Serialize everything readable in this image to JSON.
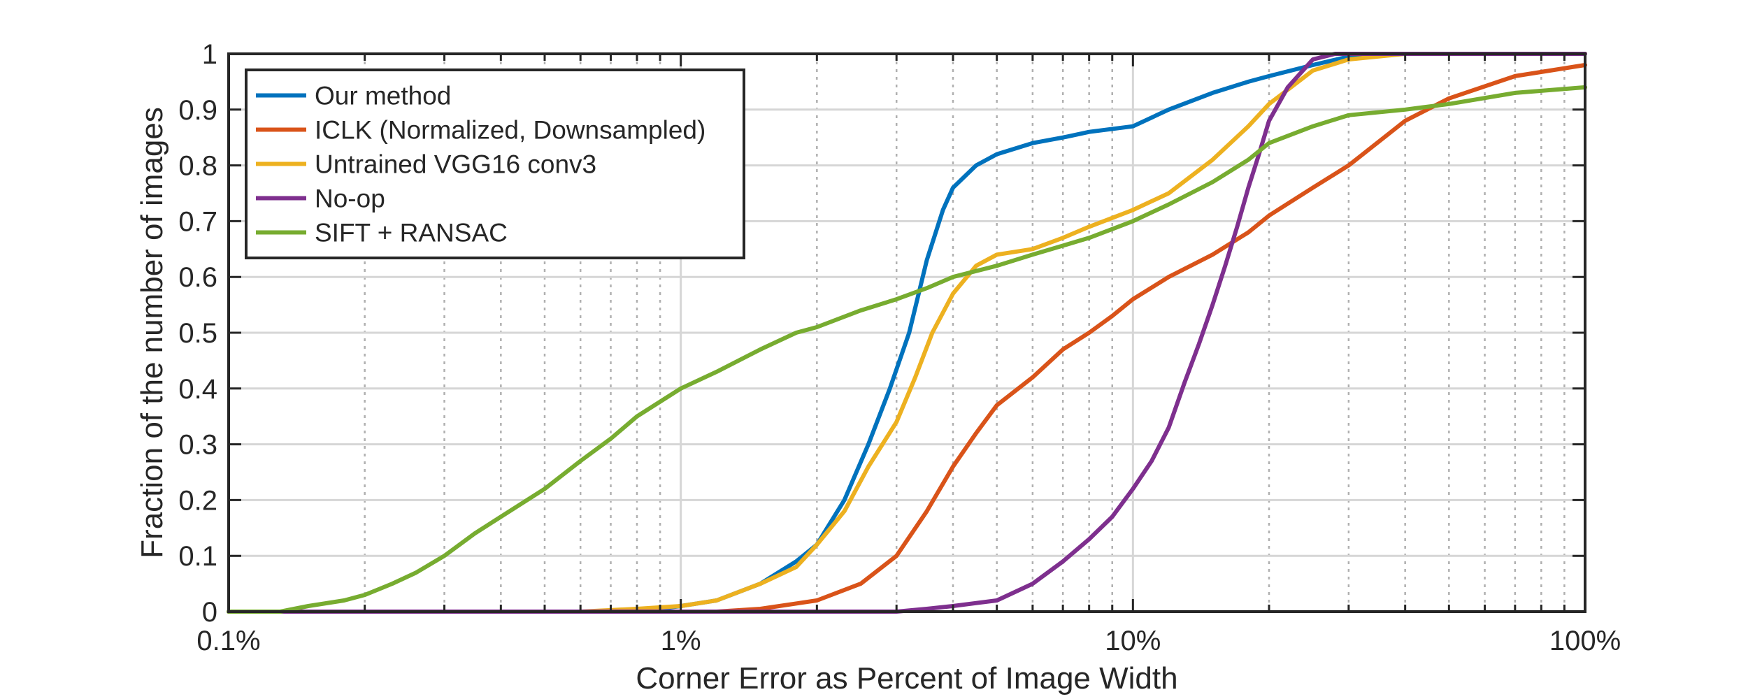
{
  "chart_data": {
    "type": "line",
    "xlabel": "Corner Error as Percent of Image Width",
    "ylabel": "Fraction of the number of images",
    "x_scale": "log",
    "xlim": [
      0.1,
      100
    ],
    "ylim": [
      0,
      1
    ],
    "x_ticks": [
      0.1,
      1,
      10,
      100
    ],
    "x_tick_labels": [
      "0.1%",
      "1%",
      "10%",
      "100%"
    ],
    "y_ticks": [
      0,
      0.1,
      0.2,
      0.3,
      0.4,
      0.5,
      0.6,
      0.7,
      0.8,
      0.9,
      1
    ],
    "y_tick_labels": [
      "0",
      "0.1",
      "0.2",
      "0.3",
      "0.4",
      "0.5",
      "0.6",
      "0.7",
      "0.8",
      "0.9",
      "1"
    ],
    "grid": true,
    "legend_position": "top-left",
    "series": [
      {
        "name": "Our method",
        "color": "#0072BD",
        "points": [
          [
            0.1,
            0
          ],
          [
            0.8,
            0
          ],
          [
            1,
            0.01
          ],
          [
            1.2,
            0.02
          ],
          [
            1.5,
            0.05
          ],
          [
            1.8,
            0.09
          ],
          [
            2,
            0.12
          ],
          [
            2.3,
            0.2
          ],
          [
            2.6,
            0.3
          ],
          [
            2.9,
            0.4
          ],
          [
            3.2,
            0.5
          ],
          [
            3.5,
            0.63
          ],
          [
            3.8,
            0.72
          ],
          [
            4,
            0.76
          ],
          [
            4.5,
            0.8
          ],
          [
            5,
            0.82
          ],
          [
            6,
            0.84
          ],
          [
            7,
            0.85
          ],
          [
            8,
            0.86
          ],
          [
            10,
            0.87
          ],
          [
            12,
            0.9
          ],
          [
            15,
            0.93
          ],
          [
            18,
            0.95
          ],
          [
            20,
            0.96
          ],
          [
            25,
            0.98
          ],
          [
            30,
            0.995
          ],
          [
            40,
            1
          ],
          [
            100,
            1
          ]
        ]
      },
      {
        "name": "ICLK (Normalized, Downsampled)",
        "color": "#D95319",
        "points": [
          [
            0.1,
            0
          ],
          [
            1.2,
            0
          ],
          [
            1.5,
            0.005
          ],
          [
            2,
            0.02
          ],
          [
            2.5,
            0.05
          ],
          [
            3,
            0.1
          ],
          [
            3.5,
            0.18
          ],
          [
            4,
            0.26
          ],
          [
            4.5,
            0.32
          ],
          [
            5,
            0.37
          ],
          [
            6,
            0.42
          ],
          [
            7,
            0.47
          ],
          [
            8,
            0.5
          ],
          [
            9,
            0.53
          ],
          [
            10,
            0.56
          ],
          [
            12,
            0.6
          ],
          [
            15,
            0.64
          ],
          [
            18,
            0.68
          ],
          [
            20,
            0.71
          ],
          [
            25,
            0.76
          ],
          [
            30,
            0.8
          ],
          [
            40,
            0.88
          ],
          [
            50,
            0.92
          ],
          [
            70,
            0.96
          ],
          [
            100,
            0.98
          ]
        ]
      },
      {
        "name": "Untrained VGG16 conv3",
        "color": "#EDB120",
        "points": [
          [
            0.1,
            0
          ],
          [
            0.6,
            0
          ],
          [
            0.8,
            0.005
          ],
          [
            1,
            0.01
          ],
          [
            1.2,
            0.02
          ],
          [
            1.5,
            0.05
          ],
          [
            1.8,
            0.08
          ],
          [
            2,
            0.12
          ],
          [
            2.3,
            0.18
          ],
          [
            2.6,
            0.26
          ],
          [
            3,
            0.34
          ],
          [
            3.3,
            0.42
          ],
          [
            3.6,
            0.5
          ],
          [
            4,
            0.57
          ],
          [
            4.5,
            0.62
          ],
          [
            5,
            0.64
          ],
          [
            6,
            0.65
          ],
          [
            7,
            0.67
          ],
          [
            8,
            0.69
          ],
          [
            10,
            0.72
          ],
          [
            12,
            0.75
          ],
          [
            15,
            0.81
          ],
          [
            18,
            0.87
          ],
          [
            20,
            0.91
          ],
          [
            25,
            0.97
          ],
          [
            30,
            0.99
          ],
          [
            40,
            1
          ],
          [
            100,
            1
          ]
        ]
      },
      {
        "name": "No-op",
        "color": "#7E2F8E",
        "points": [
          [
            0.1,
            0
          ],
          [
            3,
            0
          ],
          [
            3.5,
            0.005
          ],
          [
            4,
            0.01
          ],
          [
            5,
            0.02
          ],
          [
            6,
            0.05
          ],
          [
            7,
            0.09
          ],
          [
            8,
            0.13
          ],
          [
            9,
            0.17
          ],
          [
            10,
            0.22
          ],
          [
            11,
            0.27
          ],
          [
            12,
            0.33
          ],
          [
            13,
            0.41
          ],
          [
            14,
            0.48
          ],
          [
            15,
            0.55
          ],
          [
            16,
            0.62
          ],
          [
            17,
            0.69
          ],
          [
            18,
            0.76
          ],
          [
            19,
            0.82
          ],
          [
            20,
            0.88
          ],
          [
            22,
            0.94
          ],
          [
            25,
            0.99
          ],
          [
            28,
            1
          ],
          [
            100,
            1
          ]
        ]
      },
      {
        "name": "SIFT + RANSAC",
        "color": "#77AC30",
        "points": [
          [
            0.1,
            0
          ],
          [
            0.13,
            0
          ],
          [
            0.15,
            0.01
          ],
          [
            0.18,
            0.02
          ],
          [
            0.2,
            0.03
          ],
          [
            0.23,
            0.05
          ],
          [
            0.26,
            0.07
          ],
          [
            0.3,
            0.1
          ],
          [
            0.35,
            0.14
          ],
          [
            0.4,
            0.17
          ],
          [
            0.5,
            0.22
          ],
          [
            0.6,
            0.27
          ],
          [
            0.7,
            0.31
          ],
          [
            0.8,
            0.35
          ],
          [
            1,
            0.4
          ],
          [
            1.2,
            0.43
          ],
          [
            1.5,
            0.47
          ],
          [
            1.8,
            0.5
          ],
          [
            2,
            0.51
          ],
          [
            2.5,
            0.54
          ],
          [
            3,
            0.56
          ],
          [
            3.5,
            0.58
          ],
          [
            4,
            0.6
          ],
          [
            5,
            0.62
          ],
          [
            6,
            0.64
          ],
          [
            8,
            0.67
          ],
          [
            10,
            0.7
          ],
          [
            12,
            0.73
          ],
          [
            15,
            0.77
          ],
          [
            18,
            0.81
          ],
          [
            20,
            0.84
          ],
          [
            25,
            0.87
          ],
          [
            30,
            0.89
          ],
          [
            40,
            0.9
          ],
          [
            50,
            0.91
          ],
          [
            70,
            0.93
          ],
          [
            100,
            0.94
          ]
        ]
      }
    ]
  }
}
